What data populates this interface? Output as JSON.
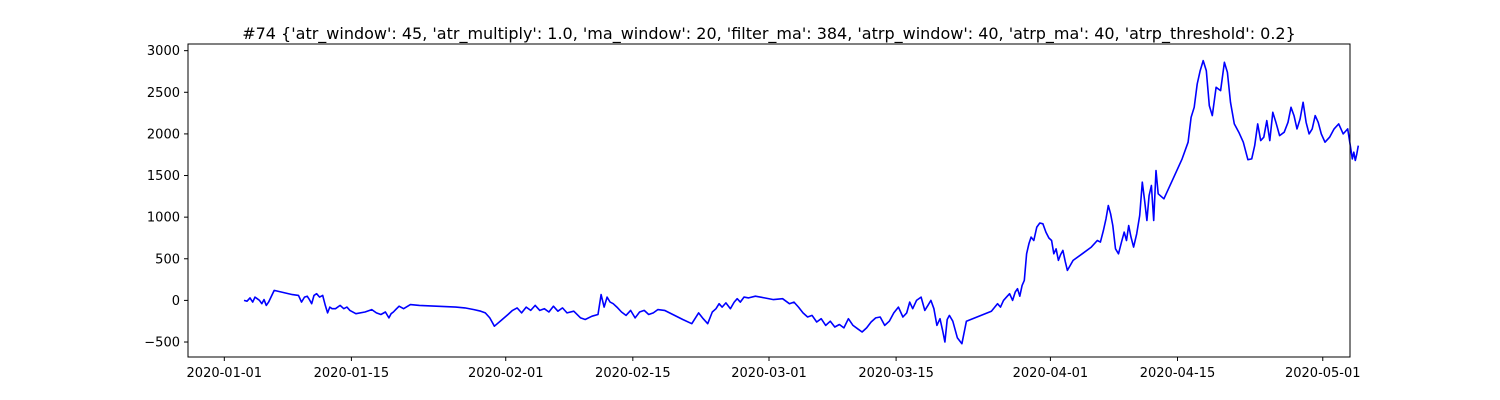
{
  "chart_data": {
    "type": "line",
    "title": "#74 {'atr_window': 45, 'atr_multiply': 1.0, 'ma_window': 20, 'filter_ma': 384, 'atrp_window': 40, 'atrp_ma': 40, 'atrp_threshold': 0.2}",
    "xlabel": "",
    "ylabel": "",
    "x_type": "date",
    "xlim": [
      "2019-12-28",
      "2020-05-04"
    ],
    "ylim": [
      -680,
      3080
    ],
    "x_ticks": [
      "2020-01-01",
      "2020-01-15",
      "2020-02-01",
      "2020-02-15",
      "2020-03-01",
      "2020-03-15",
      "2020-04-01",
      "2020-04-15",
      "2020-05-01"
    ],
    "y_ticks": [
      -500,
      0,
      500,
      1000,
      1500,
      2000,
      2500,
      3000
    ],
    "grid": false,
    "legend": false,
    "line_color": "#0000ff",
    "series": [
      {
        "points": [
          [
            "2020-01-03",
            0
          ],
          [
            "2020-01-03",
            -10
          ],
          [
            "2020-01-03",
            30
          ],
          [
            "2020-01-04",
            -20
          ],
          [
            "2020-01-04",
            40
          ],
          [
            "2020-01-04",
            20
          ],
          [
            "2020-01-04",
            0
          ],
          [
            "2020-01-05",
            -40
          ],
          [
            "2020-01-05",
            10
          ],
          [
            "2020-01-05",
            -60
          ],
          [
            "2020-01-05",
            -20
          ],
          [
            "2020-01-06",
            120
          ],
          [
            "2020-01-08",
            70
          ],
          [
            "2020-01-09",
            60
          ],
          [
            "2020-01-09",
            -20
          ],
          [
            "2020-01-09",
            40
          ],
          [
            "2020-01-10",
            50
          ],
          [
            "2020-01-10",
            10
          ],
          [
            "2020-01-10",
            -40
          ],
          [
            "2020-01-10",
            60
          ],
          [
            "2020-01-11",
            80
          ],
          [
            "2020-01-11",
            40
          ],
          [
            "2020-01-11",
            60
          ],
          [
            "2020-01-12",
            -60
          ],
          [
            "2020-01-12",
            -150
          ],
          [
            "2020-01-12",
            -80
          ],
          [
            "2020-01-12",
            -100
          ],
          [
            "2020-01-13",
            -100
          ],
          [
            "2020-01-13",
            -60
          ],
          [
            "2020-01-14",
            -100
          ],
          [
            "2020-01-14",
            -80
          ],
          [
            "2020-01-14",
            -120
          ],
          [
            "2020-01-15",
            -160
          ],
          [
            "2020-01-16",
            -140
          ],
          [
            "2020-01-17",
            -110
          ],
          [
            "2020-01-17",
            -150
          ],
          [
            "2020-01-18",
            -170
          ],
          [
            "2020-01-18",
            -140
          ],
          [
            "2020-01-19",
            -210
          ],
          [
            "2020-01-19",
            -160
          ],
          [
            "2020-01-19",
            -140
          ],
          [
            "2020-01-19",
            -110
          ],
          [
            "2020-01-20",
            -70
          ],
          [
            "2020-01-20",
            -100
          ],
          [
            "2020-01-21",
            -50
          ],
          [
            "2020-01-22",
            -60
          ],
          [
            "2020-01-26",
            -80
          ],
          [
            "2020-01-27",
            -90
          ],
          [
            "2020-01-28",
            -110
          ],
          [
            "2020-01-29",
            -130
          ],
          [
            "2020-01-29",
            -150
          ],
          [
            "2020-01-30",
            -210
          ],
          [
            "2020-01-30",
            -310
          ],
          [
            "2020-01-31",
            -240
          ],
          [
            "2020-02-01",
            -170
          ],
          [
            "2020-02-01",
            -120
          ],
          [
            "2020-02-02",
            -90
          ],
          [
            "2020-02-02",
            -150
          ],
          [
            "2020-02-03",
            -80
          ],
          [
            "2020-02-03",
            -120
          ],
          [
            "2020-02-04",
            -60
          ],
          [
            "2020-02-04",
            -120
          ],
          [
            "2020-02-05",
            -100
          ],
          [
            "2020-02-05",
            -140
          ],
          [
            "2020-02-06",
            -70
          ],
          [
            "2020-02-06",
            -130
          ],
          [
            "2020-02-07",
            -90
          ],
          [
            "2020-02-07",
            -150
          ],
          [
            "2020-02-08",
            -130
          ],
          [
            "2020-02-09",
            -210
          ],
          [
            "2020-02-09",
            -230
          ],
          [
            "2020-02-10",
            -190
          ],
          [
            "2020-02-11",
            -170
          ],
          [
            "2020-02-11",
            70
          ],
          [
            "2020-02-11",
            -80
          ],
          [
            "2020-02-12",
            40
          ],
          [
            "2020-02-12",
            -20
          ],
          [
            "2020-02-12",
            -40
          ],
          [
            "2020-02-13",
            -80
          ],
          [
            "2020-02-13",
            -140
          ],
          [
            "2020-02-14",
            -180
          ],
          [
            "2020-02-14",
            -120
          ],
          [
            "2020-02-15",
            -210
          ],
          [
            "2020-02-15",
            -140
          ],
          [
            "2020-02-16",
            -120
          ],
          [
            "2020-02-16",
            -170
          ],
          [
            "2020-02-17",
            -150
          ],
          [
            "2020-02-17",
            -110
          ],
          [
            "2020-02-18",
            -120
          ],
          [
            "2020-02-20",
            -230
          ],
          [
            "2020-02-21",
            -280
          ],
          [
            "2020-02-22",
            -150
          ],
          [
            "2020-02-22",
            -220
          ],
          [
            "2020-02-23",
            -280
          ],
          [
            "2020-02-23",
            -140
          ],
          [
            "2020-02-24",
            -100
          ],
          [
            "2020-02-24",
            -40
          ],
          [
            "2020-02-24",
            -80
          ],
          [
            "2020-02-25",
            -30
          ],
          [
            "2020-02-25",
            -100
          ],
          [
            "2020-02-26",
            -20
          ],
          [
            "2020-02-26",
            20
          ],
          [
            "2020-02-26",
            -20
          ],
          [
            "2020-02-27",
            40
          ],
          [
            "2020-02-27",
            30
          ],
          [
            "2020-02-28",
            50
          ],
          [
            "2020-02-29",
            30
          ],
          [
            "2020-03-01",
            10
          ],
          [
            "2020-03-02",
            20
          ],
          [
            "2020-03-03",
            -40
          ],
          [
            "2020-03-03",
            -20
          ],
          [
            "2020-03-04",
            -80
          ],
          [
            "2020-03-04",
            -150
          ],
          [
            "2020-03-05",
            -200
          ],
          [
            "2020-03-05",
            -180
          ],
          [
            "2020-03-06",
            -260
          ],
          [
            "2020-03-06",
            -220
          ],
          [
            "2020-03-07",
            -300
          ],
          [
            "2020-03-07",
            -250
          ],
          [
            "2020-03-08",
            -320
          ],
          [
            "2020-03-08",
            -290
          ],
          [
            "2020-03-09",
            -330
          ],
          [
            "2020-03-09",
            -220
          ],
          [
            "2020-03-10",
            -300
          ],
          [
            "2020-03-10",
            -340
          ],
          [
            "2020-03-11",
            -380
          ],
          [
            "2020-03-11",
            -330
          ],
          [
            "2020-03-12",
            -260
          ],
          [
            "2020-03-12",
            -210
          ],
          [
            "2020-03-13",
            -200
          ],
          [
            "2020-03-13",
            -300
          ],
          [
            "2020-03-14",
            -250
          ],
          [
            "2020-03-14",
            -150
          ],
          [
            "2020-03-15",
            -80
          ],
          [
            "2020-03-15",
            -200
          ],
          [
            "2020-03-16",
            -150
          ],
          [
            "2020-03-16",
            -20
          ],
          [
            "2020-03-16",
            -100
          ],
          [
            "2020-03-17",
            0
          ],
          [
            "2020-03-17",
            40
          ],
          [
            "2020-03-18",
            -120
          ],
          [
            "2020-03-18",
            -60
          ],
          [
            "2020-03-18",
            0
          ],
          [
            "2020-03-19",
            -100
          ],
          [
            "2020-03-19",
            -300
          ],
          [
            "2020-03-19",
            -220
          ],
          [
            "2020-03-20",
            -360
          ],
          [
            "2020-03-20",
            -500
          ],
          [
            "2020-03-20",
            -230
          ],
          [
            "2020-03-20",
            -180
          ],
          [
            "2020-03-21",
            -250
          ],
          [
            "2020-03-21",
            -450
          ],
          [
            "2020-03-22",
            -520
          ],
          [
            "2020-03-22",
            -250
          ],
          [
            "2020-03-25",
            -130
          ],
          [
            "2020-03-26",
            -40
          ],
          [
            "2020-03-26",
            -80
          ],
          [
            "2020-03-26",
            0
          ],
          [
            "2020-03-27",
            40
          ],
          [
            "2020-03-27",
            80
          ],
          [
            "2020-03-27",
            0
          ],
          [
            "2020-03-28",
            100
          ],
          [
            "2020-03-28",
            140
          ],
          [
            "2020-03-28",
            50
          ],
          [
            "2020-03-28",
            180
          ],
          [
            "2020-03-29",
            240
          ],
          [
            "2020-03-29",
            560
          ],
          [
            "2020-03-29",
            680
          ],
          [
            "2020-03-29",
            760
          ],
          [
            "2020-03-30",
            720
          ],
          [
            "2020-03-30",
            880
          ],
          [
            "2020-03-30",
            930
          ],
          [
            "2020-03-31",
            920
          ],
          [
            "2020-03-31",
            820
          ],
          [
            "2020-03-31",
            750
          ],
          [
            "2020-04-01",
            720
          ],
          [
            "2020-04-01",
            560
          ],
          [
            "2020-04-01",
            620
          ],
          [
            "2020-04-01",
            480
          ],
          [
            "2020-04-02",
            550
          ],
          [
            "2020-04-02",
            600
          ],
          [
            "2020-04-02",
            470
          ],
          [
            "2020-04-02",
            360
          ],
          [
            "2020-04-03",
            480
          ],
          [
            "2020-04-04",
            560
          ],
          [
            "2020-04-05",
            640
          ],
          [
            "2020-04-06",
            720
          ],
          [
            "2020-04-06",
            700
          ],
          [
            "2020-04-06",
            840
          ],
          [
            "2020-04-07",
            980
          ],
          [
            "2020-04-07",
            1140
          ],
          [
            "2020-04-07",
            1040
          ],
          [
            "2020-04-07",
            900
          ],
          [
            "2020-04-08",
            620
          ],
          [
            "2020-04-08",
            560
          ],
          [
            "2020-04-08",
            700
          ],
          [
            "2020-04-09",
            820
          ],
          [
            "2020-04-09",
            720
          ],
          [
            "2020-04-09",
            900
          ],
          [
            "2020-04-09",
            760
          ],
          [
            "2020-04-10",
            640
          ],
          [
            "2020-04-10",
            800
          ],
          [
            "2020-04-10",
            1020
          ],
          [
            "2020-04-11",
            1420
          ],
          [
            "2020-04-11",
            1200
          ],
          [
            "2020-04-11",
            960
          ],
          [
            "2020-04-11",
            1260
          ],
          [
            "2020-04-12",
            1380
          ],
          [
            "2020-04-12",
            960
          ],
          [
            "2020-04-12",
            1560
          ],
          [
            "2020-04-12",
            1280
          ],
          [
            "2020-04-13",
            1220
          ],
          [
            "2020-04-14",
            1460
          ],
          [
            "2020-04-15",
            1700
          ],
          [
            "2020-04-16",
            1900
          ],
          [
            "2020-04-16",
            2200
          ],
          [
            "2020-04-16",
            2320
          ],
          [
            "2020-04-17",
            2600
          ],
          [
            "2020-04-17",
            2760
          ],
          [
            "2020-04-17",
            2880
          ],
          [
            "2020-04-18",
            2760
          ],
          [
            "2020-04-18",
            2340
          ],
          [
            "2020-04-18",
            2220
          ],
          [
            "2020-04-19",
            2560
          ],
          [
            "2020-04-19",
            2520
          ],
          [
            "2020-04-20",
            2860
          ],
          [
            "2020-04-20",
            2740
          ],
          [
            "2020-04-20",
            2380
          ],
          [
            "2020-04-21",
            2120
          ],
          [
            "2020-04-21",
            2020
          ],
          [
            "2020-04-22",
            1900
          ],
          [
            "2020-04-22",
            1690
          ],
          [
            "2020-04-23",
            1700
          ],
          [
            "2020-04-23",
            1860
          ],
          [
            "2020-04-23",
            2120
          ],
          [
            "2020-04-24",
            1920
          ],
          [
            "2020-04-24",
            1960
          ],
          [
            "2020-04-24",
            2160
          ],
          [
            "2020-04-25",
            1920
          ],
          [
            "2020-04-25",
            2260
          ],
          [
            "2020-04-25",
            2140
          ],
          [
            "2020-04-26",
            1980
          ],
          [
            "2020-04-26",
            2020
          ],
          [
            "2020-04-27",
            2140
          ],
          [
            "2020-04-27",
            2320
          ],
          [
            "2020-04-27",
            2220
          ],
          [
            "2020-04-28",
            2060
          ],
          [
            "2020-04-28",
            2180
          ],
          [
            "2020-04-28",
            2380
          ],
          [
            "2020-04-29",
            2140
          ],
          [
            "2020-04-29",
            2000
          ],
          [
            "2020-04-29",
            2060
          ],
          [
            "2020-04-30",
            2220
          ],
          [
            "2020-04-30",
            2140
          ],
          [
            "2020-04-30",
            2000
          ],
          [
            "2020-05-01",
            1900
          ],
          [
            "2020-05-01",
            1960
          ],
          [
            "2020-05-02",
            2060
          ],
          [
            "2020-05-02",
            2120
          ],
          [
            "2020-05-03",
            2000
          ],
          [
            "2020-05-03",
            2060
          ],
          [
            "2020-05-04",
            1820
          ],
          [
            "2020-05-04",
            1700
          ],
          [
            "2020-05-04",
            1780
          ],
          [
            "2020-05-04",
            1680
          ],
          [
            "2020-05-04",
            1760
          ],
          [
            "2020-05-04",
            1860
          ]
        ]
      }
    ]
  }
}
